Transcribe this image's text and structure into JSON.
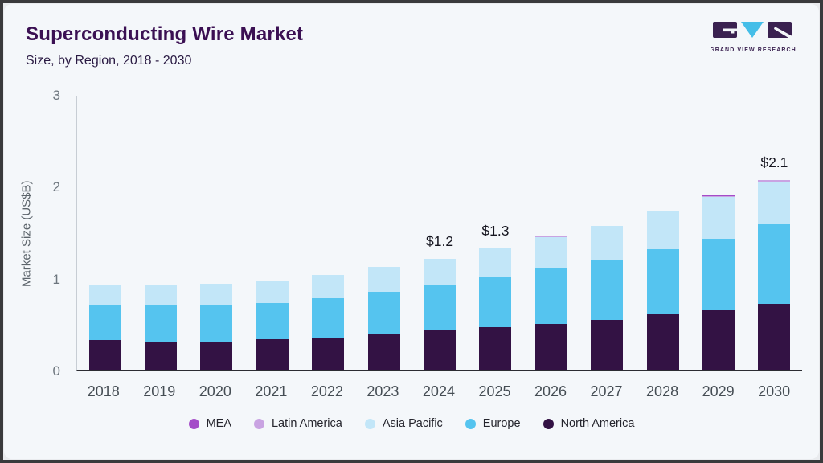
{
  "header": {
    "title": "Superconducting Wire Market",
    "subtitle": "Size, by Region, 2018 - 2030"
  },
  "logo": {
    "text": "GRAND VIEW RESEARCH",
    "brand_purple": "#3a2150",
    "brand_cyan": "#45bee8"
  },
  "colors": {
    "card_background": "#f4f7fa",
    "title_text": "#3b1053",
    "axis_line_x": "#2c2c32",
    "axis_line_y": "#c7cdd4"
  },
  "chart_data": {
    "type": "bar",
    "stacked": true,
    "title": "Superconducting Wire Market Size, by Region, 2018 - 2030",
    "xlabel": "",
    "ylabel": "Market Size (US$B)",
    "ylim": [
      0,
      3
    ],
    "yticks": [
      0,
      1,
      2,
      3
    ],
    "grid": false,
    "legend_position": "bottom",
    "categories": [
      "2018",
      "2019",
      "2020",
      "2021",
      "2022",
      "2023",
      "2024",
      "2025",
      "2026",
      "2027",
      "2028",
      "2029",
      "2030"
    ],
    "series": [
      {
        "name": "North America",
        "color": "#331244",
        "values": [
          0.32,
          0.31,
          0.31,
          0.33,
          0.35,
          0.39,
          0.43,
          0.46,
          0.5,
          0.54,
          0.6,
          0.65,
          0.72
        ]
      },
      {
        "name": "Europe",
        "color": "#55c4ef",
        "values": [
          0.38,
          0.39,
          0.39,
          0.4,
          0.43,
          0.46,
          0.5,
          0.55,
          0.6,
          0.66,
          0.71,
          0.78,
          0.86
        ]
      },
      {
        "name": "Asia Pacific",
        "color": "#c2e6f8",
        "values": [
          0.23,
          0.23,
          0.24,
          0.24,
          0.25,
          0.27,
          0.28,
          0.31,
          0.34,
          0.37,
          0.41,
          0.45,
          0.47
        ]
      },
      {
        "name": "Latin America",
        "color": "#c9a3e2",
        "values": [
          0,
          0,
          0,
          0,
          0,
          0,
          0,
          0,
          0.01,
          0,
          0,
          0.012,
          0.012
        ]
      },
      {
        "name": "MEA",
        "color": "#a44bc8",
        "values": [
          0,
          0,
          0,
          0,
          0,
          0,
          0,
          0,
          0.004,
          0,
          0,
          0.005,
          0.005
        ]
      }
    ],
    "bar_labels": {
      "2024": "$1.2",
      "2025": "$1.3",
      "2030": "$2.1"
    },
    "legend": [
      "MEA",
      "Latin America",
      "Asia Pacific",
      "Europe",
      "North America"
    ]
  }
}
